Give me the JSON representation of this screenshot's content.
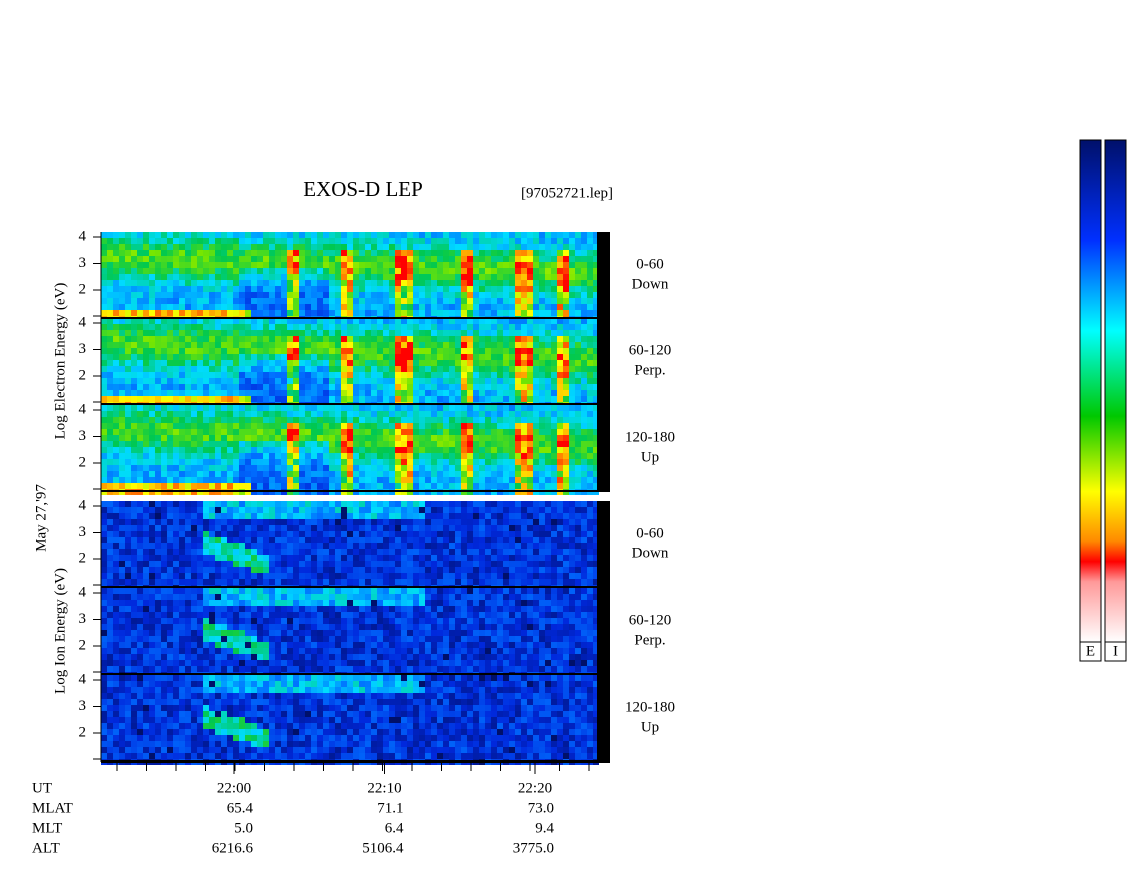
{
  "title": "EXOS-D LEP",
  "file": "[97052721.lep]",
  "date": "May 27,'97",
  "electron": {
    "axis_label": "Log  Electron  Energy (eV)",
    "yticks": [
      2,
      3,
      4
    ],
    "channels": [
      {
        "range": "0-60",
        "direction": "Down"
      },
      {
        "range": "60-120",
        "direction": "Perp."
      },
      {
        "range": "120-180",
        "direction": "Up"
      }
    ]
  },
  "ion": {
    "axis_label": "Log  Ion  Energy (eV)",
    "yticks": [
      2,
      3,
      4
    ],
    "channels": [
      {
        "range": "0-60",
        "direction": "Down"
      },
      {
        "range": "60-120",
        "direction": "Perp."
      },
      {
        "range": "120-180",
        "direction": "Up"
      }
    ]
  },
  "time_axis": {
    "name": "UT",
    "ticks": [
      "22:00",
      "22:10",
      "22:20"
    ]
  },
  "orbit": [
    {
      "name": "MLAT",
      "values": [
        "65.4",
        "71.1",
        "73.0"
      ]
    },
    {
      "name": "MLT",
      "values": [
        "5.0",
        "6.4",
        "9.4"
      ]
    },
    {
      "name": "ALT",
      "values": [
        "6216.6",
        "5106.4",
        "3775.0"
      ]
    }
  ],
  "colorbars": [
    "E",
    "I"
  ]
}
